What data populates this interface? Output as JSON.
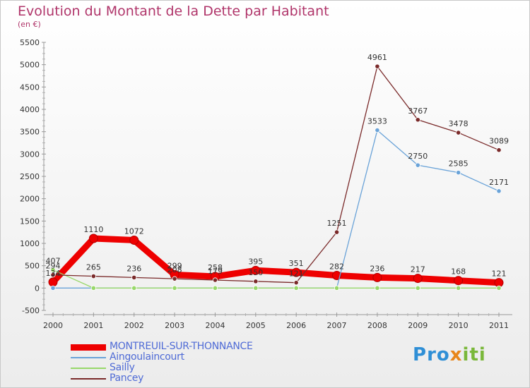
{
  "title": "Evolution du Montant de la Dette par Habitant",
  "unit": "(en €)",
  "brand": {
    "letters": [
      {
        "char": "P",
        "color": "#2f8fd6"
      },
      {
        "char": "r",
        "color": "#2f8fd6"
      },
      {
        "char": "o",
        "color": "#2f8fd6"
      },
      {
        "char": "x",
        "color": "#e8861a"
      },
      {
        "char": "i",
        "color": "#7ab83a"
      },
      {
        "char": "t",
        "color": "#7ab83a"
      },
      {
        "char": "i",
        "color": "#7ab83a"
      }
    ]
  },
  "chart_data": {
    "type": "line",
    "title": "Evolution du Montant de la Dette par Habitant",
    "ylabel": "(en €)",
    "xlabel": "",
    "x": [
      "2000",
      "2001",
      "2002",
      "2003",
      "2004",
      "2005",
      "2006",
      "2007",
      "2008",
      "2009",
      "2010",
      "2011"
    ],
    "ylim": [
      -500,
      5500
    ],
    "yticks": [
      -500,
      0,
      500,
      1000,
      1500,
      2000,
      2500,
      3000,
      3500,
      4000,
      4500,
      5000,
      5500
    ],
    "grid": false,
    "legend": "bottom",
    "series": [
      {
        "name": "MONTREUIL-SUR-THONNANCE",
        "color": "#ee0000",
        "values": [
          134,
          1110,
          1072,
          299,
          258,
          395,
          351,
          282,
          236,
          217,
          168,
          121
        ],
        "labels": [
          "134",
          "1110",
          "1072",
          "299",
          "258",
          "395",
          "351",
          "282",
          "236",
          "217",
          "168",
          "121"
        ]
      },
      {
        "name": "Aingoulaincourt",
        "color": "#6aa3d8",
        "values": [
          0,
          0,
          0,
          0,
          0,
          0,
          0,
          0,
          3533,
          2750,
          2585,
          2171
        ],
        "labels": [
          "",
          "",
          "",
          "",
          "",
          "",
          "",
          "",
          "3533",
          "2750",
          "2585",
          "2171"
        ]
      },
      {
        "name": "Sailly",
        "color": "#98d86a",
        "values": [
          407,
          0,
          0,
          0,
          0,
          0,
          0,
          0,
          0,
          0,
          0,
          0
        ],
        "labels": [
          "407",
          "",
          "",
          "",
          "",
          "",
          "",
          "",
          "",
          "",
          "",
          ""
        ]
      },
      {
        "name": "Pancey",
        "color": "#7a2a2a",
        "values": [
          294,
          265,
          236,
          208,
          179,
          150,
          121,
          1251,
          4961,
          3767,
          3478,
          3089
        ],
        "labels": [
          "294",
          "265",
          "236",
          "208",
          "179",
          "150",
          "121",
          "1251",
          "4961",
          "3767",
          "3478",
          "3089"
        ]
      }
    ]
  }
}
